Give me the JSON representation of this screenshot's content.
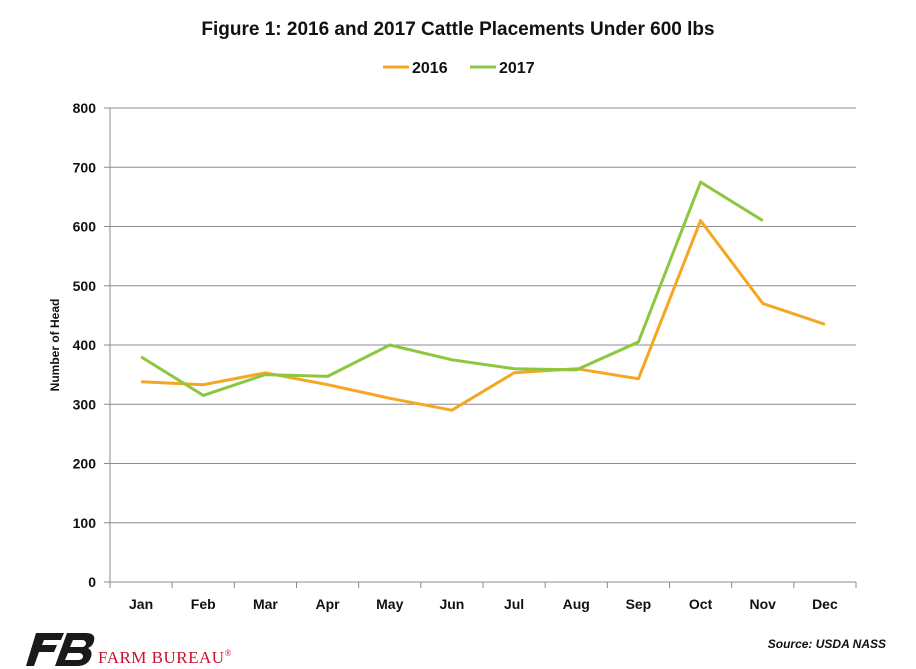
{
  "chart_data": {
    "type": "line",
    "title": "Figure 1: 2016 and 2017 Cattle Placements Under 600 lbs",
    "ylabel": "Number of Head",
    "xlabel": "",
    "categories": [
      "Jan",
      "Feb",
      "Mar",
      "Apr",
      "May",
      "Jun",
      "Jul",
      "Aug",
      "Sep",
      "Oct",
      "Nov",
      "Dec"
    ],
    "ylim": [
      0,
      800
    ],
    "yticks": [
      0,
      100,
      200,
      300,
      400,
      500,
      600,
      700,
      800
    ],
    "grid": true,
    "legend_position": "top-center",
    "series": [
      {
        "name": "2016",
        "color": "#f5a623",
        "values": [
          338,
          333,
          353,
          333,
          310,
          290,
          353,
          360,
          343,
          610,
          470,
          435
        ]
      },
      {
        "name": "2017",
        "color": "#8dc63f",
        "values": [
          380,
          315,
          350,
          347,
          400,
          375,
          360,
          358,
          405,
          675,
          610,
          null
        ]
      }
    ]
  },
  "footer": {
    "source": "Source: USDA NASS",
    "brand": "FARM BUREAU",
    "brand_mark": "®",
    "brand_color": "#c8102e",
    "logo_color": "#1a1a1a"
  }
}
